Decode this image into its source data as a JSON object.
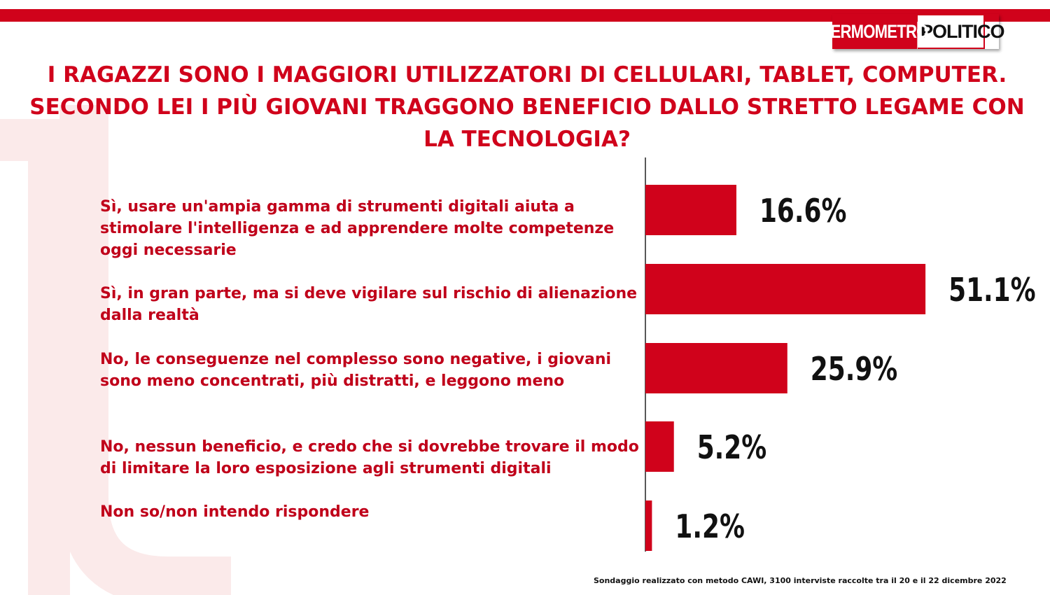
{
  "logo": {
    "part1": "TERMOMETRO",
    "part2": "POLITICO"
  },
  "chart_data": {
    "type": "bar",
    "orientation": "horizontal",
    "title": "I RAGAZZI SONO I MAGGIORI UTILIZZATORI DI CELLULARI, TABLET, COMPUTER. SECONDO LEI I PIÙ GIOVANI TRAGGONO BENEFICIO DALLO STRETTO LEGAME CON LA TECNOLOGIA?",
    "categories": [
      "Sì, usare un'ampia gamma di strumenti digitali aiuta a stimolare l'intelligenza e ad apprendere molte competenze oggi necessarie",
      "Sì, in gran parte, ma si deve vigilare sul rischio di alienazione dalla realtà",
      "No, le conseguenze nel complesso sono negative, i giovani sono meno concentrati, più distratti, e leggono meno",
      "No, nessun beneficio, e credo che si dovrebbe trovare il modo di limitare la loro esposizione agli strumenti digitali",
      "Non so/non intendo rispondere"
    ],
    "values": [
      16.6,
      51.1,
      25.9,
      5.2,
      1.2
    ],
    "value_labels": [
      "16.6%",
      "51.1%",
      "25.9%",
      "5.2%",
      "1.2%"
    ],
    "bar_color": "#d0021b",
    "grid": false
  },
  "footnote": "Sondaggio realizzato con metodo CAWI, 3100 interviste raccolte tra il 20 e il 22 dicembre 2022"
}
